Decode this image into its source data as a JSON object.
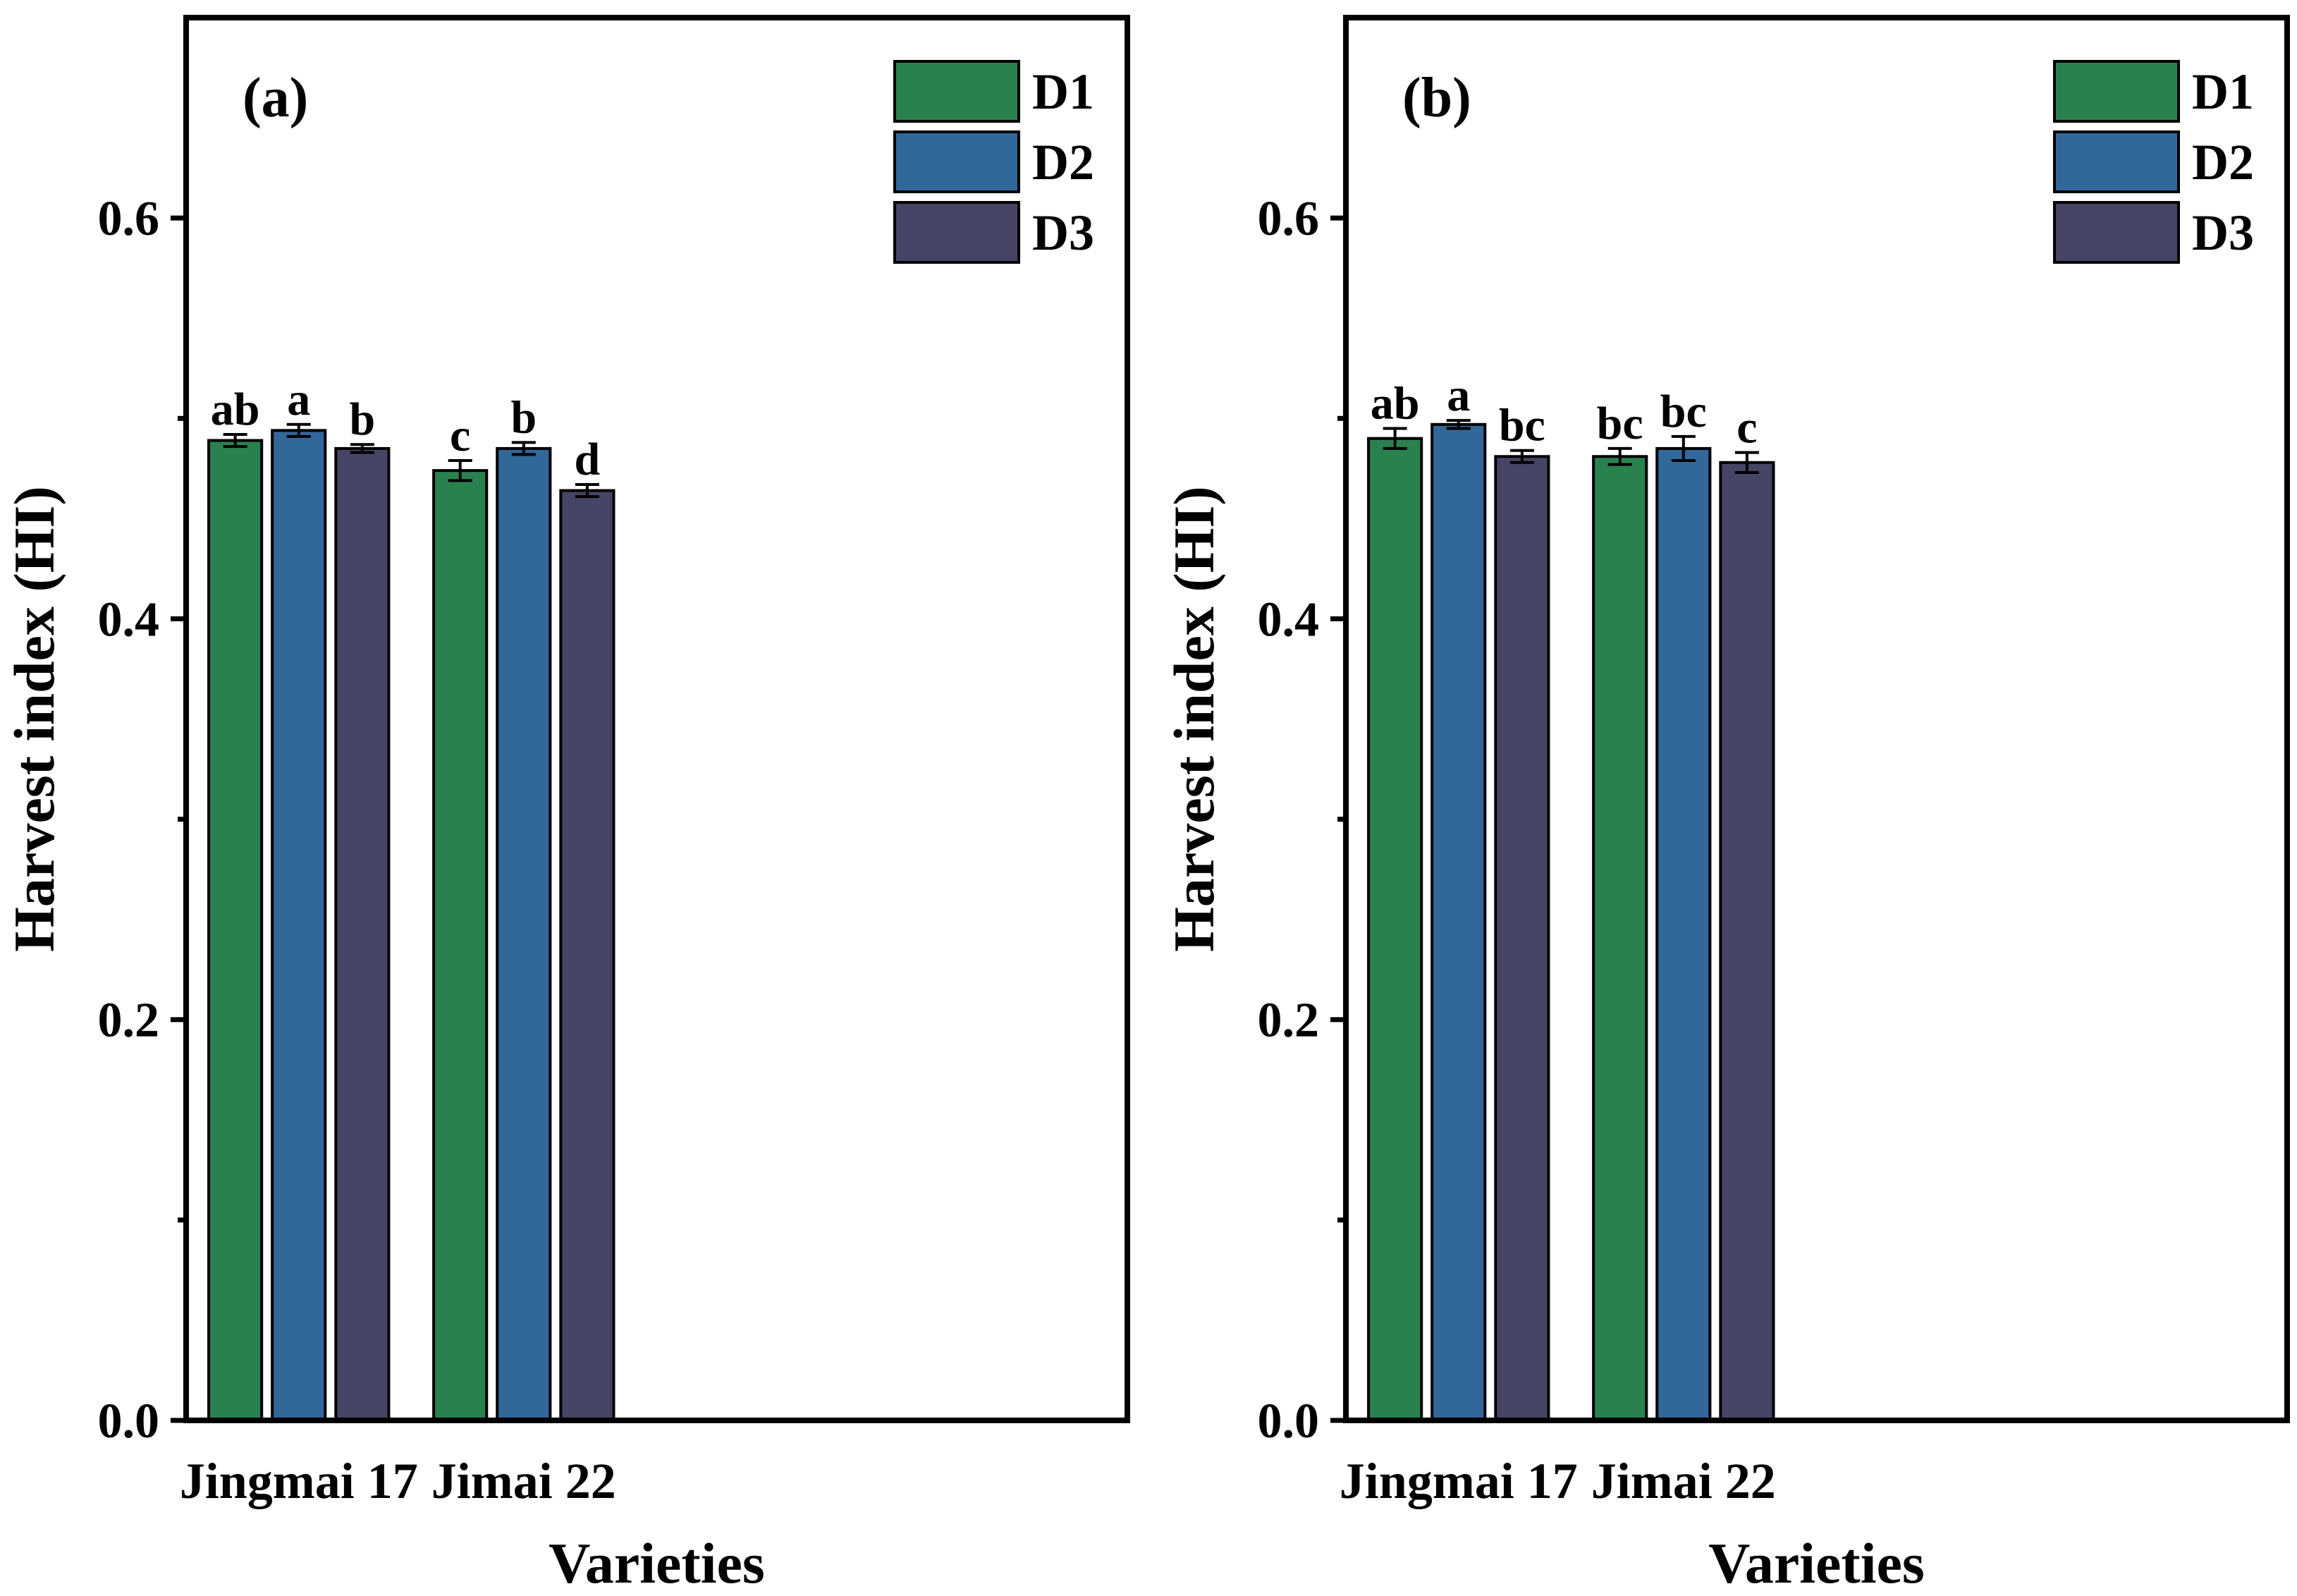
{
  "chart_data": [
    {
      "type": "bar",
      "panel_label": "(a)",
      "categories": [
        "Jingmai 17",
        "Jimai 22"
      ],
      "xlabel": "Varieties",
      "ylabel": "Harvest index (HI)",
      "ylim": [
        0,
        0.7
      ],
      "yticks": [
        0.0,
        0.2,
        0.4,
        0.6
      ],
      "ytick_labels": [
        "0.0",
        "0.2",
        "0.4",
        "0.6"
      ],
      "grid": false,
      "legend_position": "top-right",
      "series": [
        {
          "name": "D1",
          "color": "#2a8150",
          "values": [
            0.489,
            0.474
          ],
          "errors": [
            0.003,
            0.005
          ],
          "letters": [
            "ab",
            "c"
          ]
        },
        {
          "name": "D2",
          "color": "#32679a",
          "values": [
            0.494,
            0.485
          ],
          "errors": [
            0.003,
            0.003
          ],
          "letters": [
            "a",
            "b"
          ]
        },
        {
          "name": "D3",
          "color": "#464565",
          "values": [
            0.485,
            0.464
          ],
          "errors": [
            0.002,
            0.003
          ],
          "letters": [
            "b",
            "d"
          ]
        }
      ]
    },
    {
      "type": "bar",
      "panel_label": "(b)",
      "categories": [
        "Jingmai 17",
        "Jimai 22"
      ],
      "xlabel": "Varieties",
      "ylabel": "Harvest index (HI)",
      "ylim": [
        0,
        0.7
      ],
      "yticks": [
        0.0,
        0.2,
        0.4,
        0.6
      ],
      "ytick_labels": [
        "0.0",
        "0.2",
        "0.4",
        "0.6"
      ],
      "grid": false,
      "legend_position": "top-right",
      "series": [
        {
          "name": "D1",
          "color": "#2a8150",
          "values": [
            0.49,
            0.481
          ],
          "errors": [
            0.005,
            0.004
          ],
          "letters": [
            "ab",
            "bc"
          ]
        },
        {
          "name": "D2",
          "color": "#32679a",
          "values": [
            0.497,
            0.485
          ],
          "errors": [
            0.002,
            0.006
          ],
          "letters": [
            "a",
            "bc"
          ]
        },
        {
          "name": "D3",
          "color": "#464565",
          "values": [
            0.481,
            0.478
          ],
          "errors": [
            0.003,
            0.005
          ],
          "letters": [
            "bc",
            "c"
          ]
        }
      ]
    }
  ]
}
